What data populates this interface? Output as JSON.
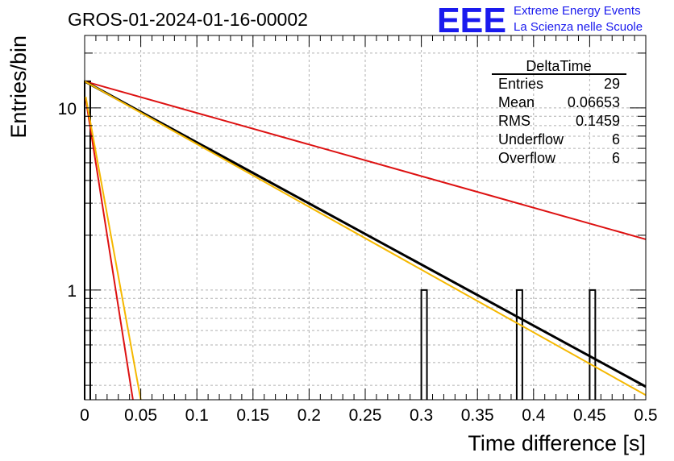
{
  "chart_data": {
    "type": "histogram",
    "title": "GROS-01-2024-01-16-00002",
    "xlabel": "Time difference [s]",
    "ylabel": "Entries/bin",
    "xlim": [
      0,
      0.5
    ],
    "ylim": [
      0.25,
      25
    ],
    "yscale": "log",
    "grid": true,
    "x_ticks": [
      "0",
      "0.05",
      "0.1",
      "0.15",
      "0.2",
      "0.25",
      "0.3",
      "0.35",
      "0.4",
      "0.45",
      "0.5"
    ],
    "y_ticks": [
      "1",
      "10"
    ],
    "bins": [
      {
        "x": 0.0,
        "y": 14
      },
      {
        "x": 0.3,
        "y": 1
      },
      {
        "x": 0.385,
        "y": 1
      },
      {
        "x": 0.45,
        "y": 1
      }
    ],
    "bin_width": 0.005,
    "curves": [
      {
        "color": "#dd1111",
        "x": [
          0,
          0.5
        ],
        "y": [
          14,
          1.9
        ]
      },
      {
        "color": "#000000",
        "x": [
          0,
          0.5
        ],
        "y": [
          14,
          0.295
        ]
      },
      {
        "color": "#f5b800",
        "x": [
          0,
          0.5
        ],
        "y": [
          14,
          0.265
        ]
      },
      {
        "color": "#dd1111",
        "x": [
          0.001,
          0.043
        ],
        "y": [
          11.2,
          0.25
        ]
      },
      {
        "color": "#f5b800",
        "x": [
          0.001,
          0.05
        ],
        "y": [
          11.5,
          0.25
        ]
      }
    ]
  },
  "stats": {
    "title": "DeltaTime",
    "rows": [
      {
        "label": "Entries",
        "value": "29"
      },
      {
        "label": "Mean",
        "value": "0.06653"
      },
      {
        "label": "RMS",
        "value": "0.1459"
      },
      {
        "label": "Underflow",
        "value": "6"
      },
      {
        "label": "Overflow",
        "value": "6"
      }
    ]
  },
  "logo": {
    "text": "EEE",
    "line1": "Extreme Energy Events",
    "line2": "La Scienza nelle Scuole",
    "color": "#1a1aee"
  }
}
